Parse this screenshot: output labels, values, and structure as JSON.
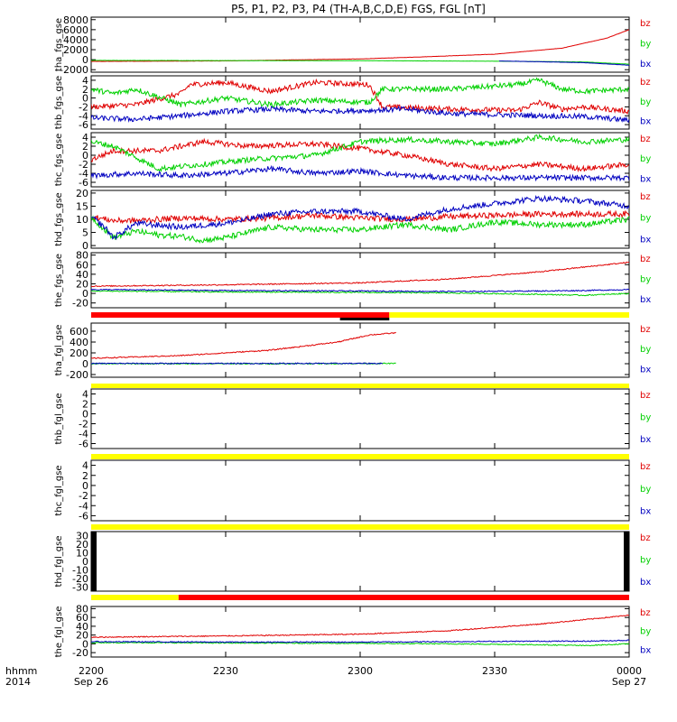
{
  "title": "P5, P1, P2, P3, P4 (TH-A,B,C,D,E) FGS, FGL [nT]",
  "colors": {
    "bz": "#e00000",
    "by": "#00d000",
    "bx": "#0000c0",
    "bar_red": "#ff0000",
    "bar_yellow": "#ffff00",
    "bar_black": "#000000"
  },
  "time_axis": {
    "ticks": [
      {
        "hhmm": "2200",
        "date": "Sep 26",
        "min": 0
      },
      {
        "hhmm": "2230",
        "date": "",
        "min": 30
      },
      {
        "hhmm": "2300",
        "date": "",
        "min": 60
      },
      {
        "hhmm": "2330",
        "date": "",
        "min": 90
      },
      {
        "hhmm": "0000",
        "date": "Sep 27",
        "min": 120
      }
    ],
    "row1_label": "hhmm",
    "row2_label": "2014",
    "range_minutes": [
      0,
      120
    ]
  },
  "legend_labels": [
    "bz",
    "by",
    "bx"
  ],
  "chart_data": [
    {
      "type": "line",
      "ylabel": "tha_fgs_gse",
      "ylim": [
        -2500,
        8500
      ],
      "yticks": [
        -2000,
        0,
        2000,
        4000,
        6000,
        8000
      ],
      "yticklabels": [
        "-2000",
        "0",
        "2000",
        "4000",
        "6000",
        "8000"
      ],
      "series": [
        {
          "name": "bz",
          "points": [
            [
              0,
              -350
            ],
            [
              30,
              -240
            ],
            [
              60,
              150
            ],
            [
              75,
              600
            ],
            [
              90,
              1100
            ],
            [
              105,
              2300
            ],
            [
              115,
              4300
            ],
            [
              120,
              6000
            ]
          ]
        },
        {
          "name": "by",
          "points": [
            [
              0,
              -150
            ],
            [
              60,
              -200
            ],
            [
              90,
              -300
            ],
            [
              110,
              -450
            ],
            [
              120,
              -900
            ]
          ]
        },
        {
          "name": "bx",
          "points": [
            [
              91,
              -270
            ],
            [
              100,
              -400
            ],
            [
              110,
              -600
            ],
            [
              120,
              -1100
            ]
          ]
        }
      ]
    },
    {
      "type": "line",
      "ylabel": "thb_fgs_gse",
      "ylim": [
        -7,
        5
      ],
      "yticks": [
        -6,
        -4,
        -2,
        0,
        2,
        4
      ],
      "yticklabels": [
        "-6",
        "-4",
        "-2",
        "0",
        "2",
        "4"
      ],
      "series": [
        {
          "name": "bz",
          "points": [
            [
              0,
              -2
            ],
            [
              10,
              -1.5
            ],
            [
              20,
              1
            ],
            [
              22,
              3
            ],
            [
              30,
              3.5
            ],
            [
              40,
              1.5
            ],
            [
              50,
              3.5
            ],
            [
              62,
              3
            ],
            [
              65,
              -2
            ],
            [
              80,
              -2.5
            ],
            [
              95,
              -2.8
            ],
            [
              100,
              -1
            ],
            [
              105,
              -2.5
            ],
            [
              110,
              -2
            ],
            [
              120,
              -3
            ]
          ]
        },
        {
          "name": "by",
          "points": [
            [
              0,
              2
            ],
            [
              5,
              1
            ],
            [
              10,
              2
            ],
            [
              20,
              -1.5
            ],
            [
              30,
              0
            ],
            [
              40,
              -1.5
            ],
            [
              50,
              -0.5
            ],
            [
              62,
              -1
            ],
            [
              65,
              2
            ],
            [
              80,
              2
            ],
            [
              95,
              3
            ],
            [
              100,
              4
            ],
            [
              105,
              2
            ],
            [
              110,
              1.5
            ],
            [
              120,
              2
            ]
          ]
        },
        {
          "name": "bx",
          "points": [
            [
              0,
              -4.5
            ],
            [
              10,
              -4.8
            ],
            [
              20,
              -4
            ],
            [
              30,
              -3
            ],
            [
              40,
              -2.5
            ],
            [
              50,
              -3
            ],
            [
              62,
              -2.8
            ],
            [
              70,
              -2.5
            ],
            [
              80,
              -3.5
            ],
            [
              100,
              -4
            ],
            [
              110,
              -4.2
            ],
            [
              120,
              -5
            ]
          ]
        }
      ]
    },
    {
      "type": "line",
      "ylabel": "thc_fgs_gse",
      "ylim": [
        -7,
        5
      ],
      "yticks": [
        -6,
        -4,
        -2,
        0,
        2,
        4
      ],
      "yticklabels": [
        "-6",
        "-4",
        "-2",
        "0",
        "2",
        "4"
      ],
      "series": [
        {
          "name": "bz",
          "points": [
            [
              0,
              -1
            ],
            [
              5,
              1
            ],
            [
              15,
              1
            ],
            [
              25,
              3
            ],
            [
              35,
              2
            ],
            [
              50,
              2.5
            ],
            [
              60,
              1.5
            ],
            [
              70,
              0
            ],
            [
              80,
              -2
            ],
            [
              90,
              -3
            ],
            [
              100,
              -2
            ],
            [
              110,
              -3
            ],
            [
              120,
              -2
            ]
          ]
        },
        {
          "name": "by",
          "points": [
            [
              0,
              3
            ],
            [
              5,
              2
            ],
            [
              15,
              -3
            ],
            [
              25,
              -2
            ],
            [
              35,
              -1
            ],
            [
              50,
              0
            ],
            [
              60,
              3
            ],
            [
              70,
              3.5
            ],
            [
              80,
              3
            ],
            [
              90,
              2.5
            ],
            [
              100,
              4
            ],
            [
              110,
              3
            ],
            [
              120,
              3.5
            ]
          ]
        },
        {
          "name": "bx",
          "points": [
            [
              0,
              -4.5
            ],
            [
              10,
              -4
            ],
            [
              20,
              -4.5
            ],
            [
              30,
              -4
            ],
            [
              40,
              -3
            ],
            [
              50,
              -4
            ],
            [
              60,
              -3.5
            ],
            [
              70,
              -4.5
            ],
            [
              80,
              -5
            ],
            [
              100,
              -5
            ],
            [
              120,
              -5
            ]
          ]
        }
      ]
    },
    {
      "type": "line",
      "ylabel": "thd_fgs_gse",
      "ylim": [
        -1,
        21
      ],
      "yticks": [
        0,
        5,
        10,
        15,
        20
      ],
      "yticklabels": [
        "0",
        "5",
        "10",
        "15",
        "20"
      ],
      "series": [
        {
          "name": "bz",
          "points": [
            [
              0,
              11
            ],
            [
              5,
              9.5
            ],
            [
              10,
              9.5
            ],
            [
              20,
              10.5
            ],
            [
              30,
              10
            ],
            [
              40,
              10.5
            ],
            [
              50,
              11.5
            ],
            [
              60,
              10.5
            ],
            [
              70,
              10
            ],
            [
              80,
              11
            ],
            [
              90,
              11.5
            ],
            [
              100,
              12
            ],
            [
              110,
              12
            ],
            [
              120,
              12
            ]
          ]
        },
        {
          "name": "by",
          "points": [
            [
              0,
              11
            ],
            [
              3,
              6
            ],
            [
              5,
              3
            ],
            [
              10,
              5.5
            ],
            [
              15,
              4
            ],
            [
              20,
              3.5
            ],
            [
              25,
              2
            ],
            [
              30,
              3
            ],
            [
              35,
              5
            ],
            [
              40,
              7
            ],
            [
              50,
              6
            ],
            [
              60,
              6
            ],
            [
              70,
              8
            ],
            [
              80,
              6
            ],
            [
              90,
              9
            ],
            [
              100,
              8
            ],
            [
              110,
              8
            ],
            [
              120,
              10
            ]
          ]
        },
        {
          "name": "bx",
          "points": [
            [
              0,
              11
            ],
            [
              3,
              7
            ],
            [
              5,
              3
            ],
            [
              10,
              8.5
            ],
            [
              20,
              7
            ],
            [
              30,
              8.5
            ],
            [
              35,
              10
            ],
            [
              40,
              12
            ],
            [
              50,
              13
            ],
            [
              60,
              13
            ],
            [
              70,
              10
            ],
            [
              80,
              14
            ],
            [
              90,
              16
            ],
            [
              100,
              18
            ],
            [
              110,
              17
            ],
            [
              120,
              15
            ]
          ]
        }
      ]
    },
    {
      "type": "line",
      "ylabel": "the_fgs_gse",
      "ylim": [
        -30,
        85
      ],
      "yticks": [
        -20,
        0,
        20,
        40,
        60,
        80
      ],
      "yticklabels": [
        "-20",
        "0",
        "20",
        "40",
        "60",
        "80"
      ],
      "series": [
        {
          "name": "bz",
          "points": [
            [
              0,
              15
            ],
            [
              30,
              18
            ],
            [
              60,
              22
            ],
            [
              80,
              30
            ],
            [
              100,
              45
            ],
            [
              110,
              55
            ],
            [
              120,
              65
            ]
          ]
        },
        {
          "name": "by",
          "points": [
            [
              0,
              5
            ],
            [
              30,
              3
            ],
            [
              60,
              2
            ],
            [
              80,
              1
            ],
            [
              100,
              -2
            ],
            [
              110,
              -4
            ],
            [
              120,
              0
            ]
          ]
        },
        {
          "name": "bx",
          "points": [
            [
              0,
              8
            ],
            [
              30,
              6
            ],
            [
              60,
              5
            ],
            [
              80,
              4
            ],
            [
              100,
              5
            ],
            [
              110,
              6
            ],
            [
              120,
              8
            ]
          ]
        }
      ]
    },
    {
      "type": "line",
      "ylabel": "tha_fgl_gse",
      "ylim": [
        -250,
        750
      ],
      "yticks": [
        -200,
        0,
        200,
        400,
        600
      ],
      "yticklabels": [
        "-200",
        "0",
        "200",
        "400",
        "600"
      ],
      "series": [
        {
          "name": "bz",
          "points": [
            [
              0,
              100
            ],
            [
              20,
              150
            ],
            [
              40,
              250
            ],
            [
              55,
              400
            ],
            [
              62,
              530
            ],
            [
              68,
              570
            ]
          ]
        },
        {
          "name": "by",
          "points": [
            [
              0,
              0
            ],
            [
              40,
              0
            ],
            [
              68,
              5
            ]
          ]
        },
        {
          "name": "bx",
          "points": [
            [
              0,
              5
            ],
            [
              40,
              5
            ],
            [
              65,
              5
            ]
          ]
        }
      ]
    },
    {
      "type": "line",
      "ylabel": "thb_fgl_gse",
      "ylim": [
        -7,
        5
      ],
      "yticks": [
        -6,
        -4,
        -2,
        0,
        2,
        4
      ],
      "yticklabels": [
        "-6",
        "-4",
        "-2",
        "0",
        "2",
        "4"
      ],
      "series": []
    },
    {
      "type": "line",
      "ylabel": "thc_fgl_gse",
      "ylim": [
        -7,
        5
      ],
      "yticks": [
        -6,
        -4,
        -2,
        0,
        2,
        4
      ],
      "yticklabels": [
        "-6",
        "-4",
        "-2",
        "0",
        "2",
        "4"
      ],
      "series": []
    },
    {
      "type": "line",
      "ylabel": "thd_fgl_gse",
      "ylim": [
        -35,
        35
      ],
      "yticks": [
        -30,
        -20,
        -10,
        0,
        10,
        20,
        30
      ],
      "yticklabels": [
        "-30",
        "-20",
        "-10",
        "0",
        "10",
        "20",
        "30"
      ],
      "series": []
    },
    {
      "type": "line",
      "ylabel": "the_fgl_gse",
      "ylim": [
        -30,
        85
      ],
      "yticks": [
        -20,
        0,
        20,
        40,
        60,
        80
      ],
      "yticklabels": [
        "-20",
        "0",
        "20",
        "40",
        "60",
        "80"
      ],
      "series": [
        {
          "name": "bz",
          "points": [
            [
              0,
              15
            ],
            [
              30,
              18
            ],
            [
              60,
              22
            ],
            [
              80,
              30
            ],
            [
              100,
              45
            ],
            [
              110,
              55
            ],
            [
              120,
              65
            ]
          ]
        },
        {
          "name": "by",
          "points": [
            [
              0,
              3
            ],
            [
              30,
              2
            ],
            [
              60,
              1
            ],
            [
              80,
              0
            ],
            [
              100,
              -2
            ],
            [
              110,
              -4
            ],
            [
              120,
              0
            ]
          ]
        },
        {
          "name": "bx",
          "points": [
            [
              0,
              5
            ],
            [
              30,
              4
            ],
            [
              60,
              4
            ],
            [
              80,
              5
            ],
            [
              100,
              6
            ],
            [
              110,
              6
            ],
            [
              120,
              8
            ]
          ]
        }
      ]
    }
  ],
  "mode_bars": [
    {
      "after_panel": 4,
      "segments": [
        [
          0,
          66.5,
          "bar_red"
        ],
        [
          66.5,
          120,
          "bar_yellow"
        ]
      ],
      "marker": [
        55.5,
        66.5
      ]
    },
    {
      "after_panel": 5,
      "segments": [
        [
          0,
          120,
          "bar_yellow"
        ]
      ]
    },
    {
      "after_panel": 6,
      "segments": [
        [
          0,
          120,
          "bar_yellow"
        ]
      ]
    },
    {
      "after_panel": 7,
      "segments": [
        [
          0,
          120,
          "bar_yellow"
        ]
      ]
    },
    {
      "after_panel": 8,
      "segments": [
        [
          0,
          19.5,
          "bar_yellow"
        ],
        [
          19.5,
          120,
          "bar_red"
        ]
      ]
    }
  ]
}
